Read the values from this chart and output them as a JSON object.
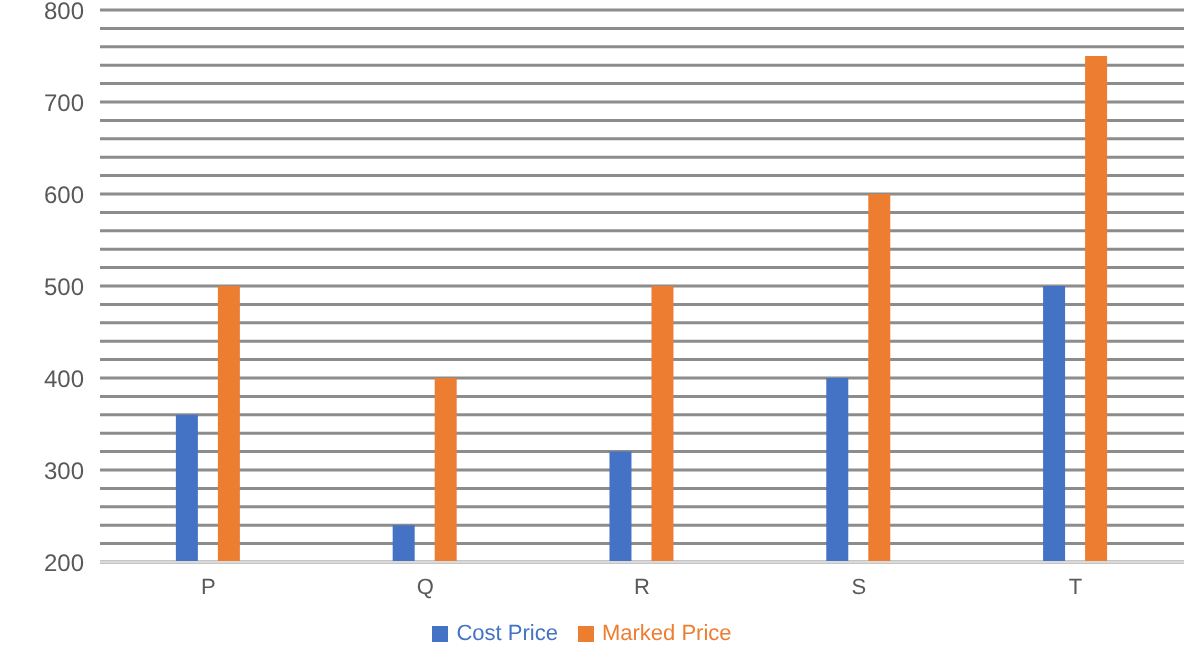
{
  "chart_data": {
    "type": "bar",
    "categories": [
      "P",
      "Q",
      "R",
      "S",
      "T"
    ],
    "series": [
      {
        "name": "Cost Price",
        "color": "#4472c4",
        "values": [
          360,
          240,
          320,
          400,
          500
        ]
      },
      {
        "name": "Marked Price",
        "color": "#ed7d31",
        "values": [
          500,
          400,
          500,
          600,
          750
        ]
      }
    ],
    "ylim": [
      200,
      800
    ],
    "yticks": [
      200,
      {
        "value": 220,
        "label": null
      },
      {
        "value": 240,
        "label": null
      },
      {
        "value": 260,
        "label": null
      },
      {
        "value": 280,
        "label": null
      },
      300,
      {
        "value": 320,
        "label": null
      },
      {
        "value": 340,
        "label": null
      },
      {
        "value": 360,
        "label": null
      },
      {
        "value": 380,
        "label": null
      },
      400,
      {
        "value": 420,
        "label": null
      },
      {
        "value": 440,
        "label": null
      },
      {
        "value": 460,
        "label": null
      },
      {
        "value": 480,
        "label": null
      },
      500,
      {
        "value": 520,
        "label": null
      },
      {
        "value": 540,
        "label": null
      },
      {
        "value": 560,
        "label": null
      },
      {
        "value": 580,
        "label": null
      },
      600,
      {
        "value": 620,
        "label": null
      },
      {
        "value": 640,
        "label": null
      },
      {
        "value": 660,
        "label": null
      },
      {
        "value": 680,
        "label": null
      },
      700,
      {
        "value": 720,
        "label": null
      },
      {
        "value": 740,
        "label": null
      },
      {
        "value": 760,
        "label": null
      },
      {
        "value": 780,
        "label": null
      },
      800
    ],
    "grid": "y",
    "legend": "bottom"
  }
}
